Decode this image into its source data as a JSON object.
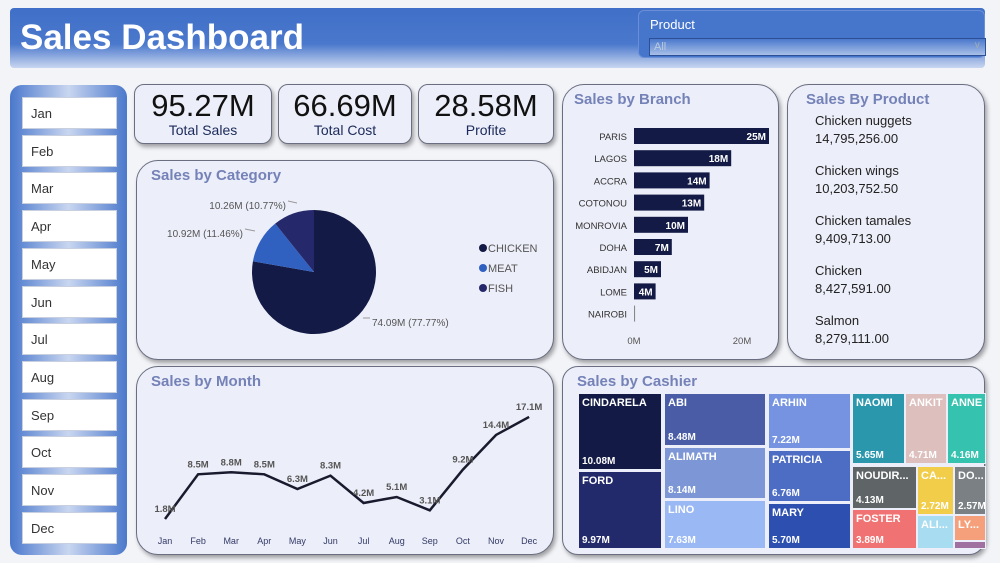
{
  "header": {
    "title": "Sales Dashboard",
    "product_filter": {
      "label": "Product",
      "value": "All"
    }
  },
  "months": [
    "Jan",
    "Feb",
    "Mar",
    "Apr",
    "May",
    "Jun",
    "Jul",
    "Aug",
    "Sep",
    "Oct",
    "Nov",
    "Dec"
  ],
  "kpis": [
    {
      "value": "95.27M",
      "label": "Total Sales"
    },
    {
      "value": "66.69M",
      "label": "Total Cost"
    },
    {
      "value": "28.58M",
      "label": "Profite"
    }
  ],
  "colors": {
    "header": "#4675cc",
    "dark": "#131a45",
    "title": "#7482b8"
  },
  "products": {
    "title": "Sales By Product",
    "items": [
      {
        "name": "Chicken nuggets",
        "value": "14,795,256.00"
      },
      {
        "name": "Chicken wings",
        "value": "10,203,752.50"
      },
      {
        "name": "Chicken tamales",
        "value": "9,409,713.00"
      },
      {
        "name": "Chicken",
        "value": "8,427,591.00"
      },
      {
        "name": "Salmon",
        "value": "8,279,111.00"
      }
    ]
  },
  "chart_data": [
    {
      "type": "pie",
      "title": "Sales by Category",
      "slices": [
        {
          "name": "CHICKEN",
          "value": 74.09,
          "label": "74.09M (77.77%)",
          "color": "#131a45"
        },
        {
          "name": "MEAT",
          "value": 10.92,
          "label": "10.92M (11.46%)",
          "color": "#3060c0"
        },
        {
          "name": "FISH",
          "value": 10.26,
          "label": "10.26M (10.77%)",
          "color": "#25296b"
        }
      ],
      "legend": "right"
    },
    {
      "type": "bar",
      "orientation": "horizontal",
      "title": "Sales by Branch",
      "categories": [
        "PARIS",
        "LAGOS",
        "ACCRA",
        "COTONOU",
        "MONROVIA",
        "DOHA",
        "ABIDJAN",
        "LOME",
        "NAIROBI"
      ],
      "values": [
        25,
        18,
        14,
        13,
        10,
        7,
        5,
        4,
        0.2
      ],
      "labels": [
        "25M",
        "18M",
        "14M",
        "13M",
        "10M",
        "7M",
        "5M",
        "4M",
        ""
      ],
      "xticks": [
        "0M",
        "20M"
      ],
      "xlim": [
        0,
        27
      ]
    },
    {
      "type": "line",
      "title": "Sales by Month",
      "categories": [
        "Jan",
        "Feb",
        "Mar",
        "Apr",
        "May",
        "Jun",
        "Jul",
        "Aug",
        "Sep",
        "Oct",
        "Nov",
        "Dec"
      ],
      "values": [
        1.8,
        8.5,
        8.8,
        8.5,
        6.3,
        8.3,
        4.2,
        5.1,
        3.1,
        9.2,
        14.4,
        17.1
      ],
      "labels": [
        "1.8M",
        "8.5M",
        "8.8M",
        "8.5M",
        "6.3M",
        "8.3M",
        "4.2M",
        "5.1M",
        "3.1M",
        "9.2M",
        "14.4M",
        "17.1M"
      ]
    },
    {
      "type": "treemap",
      "title": "Sales by Cashier",
      "items": [
        {
          "name": "CINDARELA",
          "label": "10.08M",
          "color": "#131a45"
        },
        {
          "name": "FORD",
          "label": "9.97M",
          "color": "#232a6b"
        },
        {
          "name": "ABI",
          "label": "8.48M",
          "color": "#4a5ca6"
        },
        {
          "name": "ALIMATH",
          "label": "8.14M",
          "color": "#7d97d6"
        },
        {
          "name": "LINO",
          "label": "7.63M",
          "color": "#9ab8f4"
        },
        {
          "name": "ARHIN",
          "label": "7.22M",
          "color": "#7593e0"
        },
        {
          "name": "PATRICIA",
          "label": "6.76M",
          "color": "#4d6cc4"
        },
        {
          "name": "MARY",
          "label": "5.70M",
          "color": "#2d50b0"
        },
        {
          "name": "NAOMI",
          "label": "5.65M",
          "color": "#2b97ad"
        },
        {
          "name": "ANKIT",
          "label": "4.71M",
          "color": "#ddbfbd"
        },
        {
          "name": "ANNE",
          "label": "4.16M",
          "color": "#35c2ae"
        },
        {
          "name": "NOUDIR...",
          "label": "4.13M",
          "color": "#5f6466"
        },
        {
          "name": "FOSTER",
          "label": "3.89M",
          "color": "#f07272"
        },
        {
          "name": "CA...",
          "label": "2.72M",
          "color": "#f2cd4a"
        },
        {
          "name": "DO...",
          "label": "2.57M",
          "color": "#7b8084"
        },
        {
          "name": "ALI...",
          "label": "",
          "color": "#a8dcf0"
        },
        {
          "name": "LY...",
          "label": "",
          "color": "#f5a07a"
        },
        {
          "name": "",
          "label": "",
          "color": "#a070a0"
        }
      ]
    }
  ]
}
